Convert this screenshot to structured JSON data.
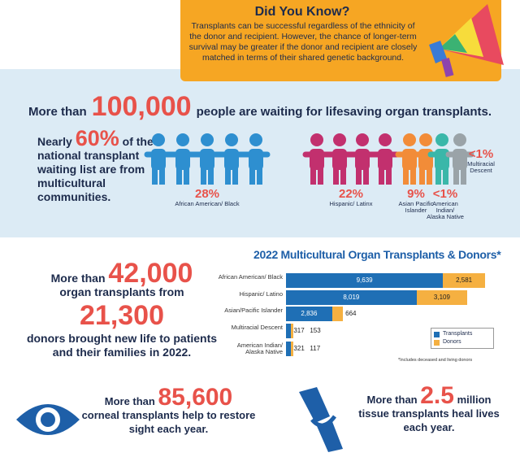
{
  "did_you_know": {
    "title": "Did You Know?",
    "text": "Transplants can be successful regardless of the ethnicity of the donor and recipient. However, the chance of longer-term survival may be greater if the donor and recipient are closely matched in terms of their shared genetic background."
  },
  "waiting": {
    "prefix": "More than",
    "number": "100,000",
    "suffix": "people are waiting for lifesaving organ transplants."
  },
  "multicultural": {
    "prefix": "Nearly",
    "number": "60%",
    "suffix": "of the national transplant waiting list are from multicultural communities.",
    "groups": [
      {
        "percent": "28%",
        "label": "African American/ Black"
      },
      {
        "percent": "22%",
        "label": "Hispanic/ Latinx"
      },
      {
        "percent": "9%",
        "label": "Asian Pacific Islander"
      },
      {
        "percent": "<1%",
        "label": "American Indian/ Alaska Native"
      },
      {
        "percent": "<1%",
        "label": "Multiracial Descent"
      }
    ]
  },
  "transplants": {
    "prefix": "More than",
    "number": "42,000",
    "middle": "organ transplants from",
    "donors": "21,300",
    "suffix": "donors brought new life to patients and their families in 2022."
  },
  "corneal": {
    "prefix": "More than",
    "number": "85,600",
    "suffix": "corneal transplants help to restore sight each year."
  },
  "tissue": {
    "prefix": "More than",
    "number": "2.5",
    "unit": "million",
    "suffix": "tissue transplants heal lives each year."
  },
  "chart_data": {
    "type": "stacked-bar-horizontal",
    "title": "2022 Multicultural Organ Transplants & Donors*",
    "categories": [
      "African American/ Black",
      "Hispanic/ Latino",
      "Asian/Pacific Islander",
      "Multiracial Descent",
      "American Indian/ Alaska Native"
    ],
    "series": [
      {
        "name": "Transplants",
        "color": "#1f6fb5",
        "values": [
          9639,
          8019,
          2836,
          317,
          321
        ],
        "value_labels": [
          "9,639",
          "8,019",
          "2,836",
          "317",
          "321"
        ]
      },
      {
        "name": "Donors",
        "color": "#f5b041",
        "values": [
          2581,
          3109,
          664,
          153,
          117
        ],
        "value_labels": [
          "2,581",
          "3,109",
          "664",
          "153",
          "117"
        ]
      }
    ],
    "note": "*Includes deceased and living donors"
  }
}
